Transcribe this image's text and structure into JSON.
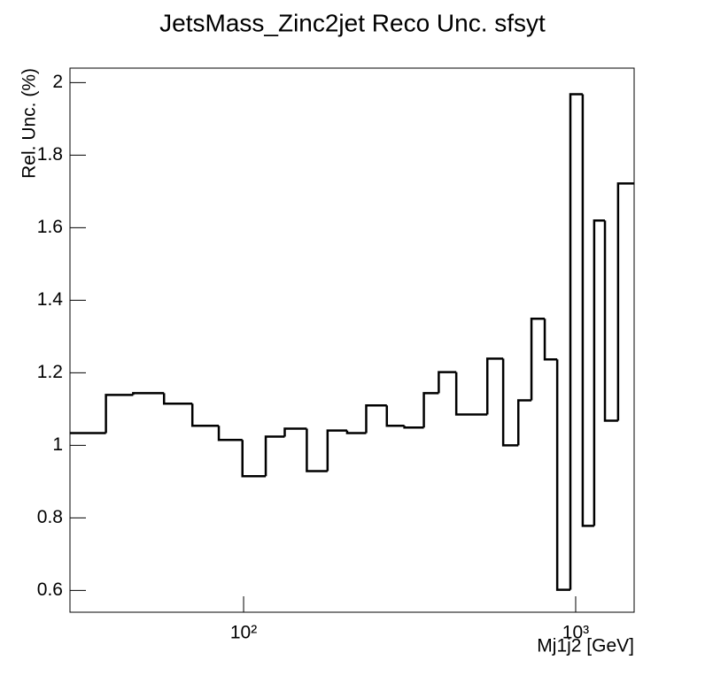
{
  "chart_data": {
    "type": "histogram",
    "title": "JetsMass_Zinc2jet Reco Unc. sfsyt",
    "xlabel": "Mj1j2 [GeV]",
    "ylabel": "Rel. Unc. (%)",
    "xscale": "log",
    "color": "#000000",
    "bins": [
      30,
      38.5,
      46.5,
      57.6,
      70.1,
      84.2,
      99.2,
      116.6,
      133,
      155,
      179,
      205,
      234,
      270,
      305,
      349,
      387,
      437,
      542,
      605,
      672,
      736,
      807,
      880,
      964,
      1050,
      1137,
      1225,
      1342,
      1500
    ],
    "values": [
      1.034,
      1.139,
      1.144,
      1.115,
      1.054,
      1.015,
      0.915,
      1.024,
      1.046,
      0.929,
      1.041,
      1.034,
      1.11,
      1.054,
      1.049,
      1.144,
      1.202,
      1.085,
      1.239,
      1.0,
      1.124,
      1.349,
      1.237,
      0.602,
      1.968,
      0.778,
      1.62,
      1.068,
      1.722
    ],
    "xlim": [
      30,
      1500
    ],
    "ylim": [
      0.54,
      2.04
    ],
    "xticks": [
      {
        "value": 100,
        "label": "10²"
      },
      {
        "value": 1000,
        "label": "10³"
      }
    ],
    "yticks": [
      0.6,
      0.8,
      1,
      1.2,
      1.4,
      1.6,
      1.8,
      2
    ]
  }
}
